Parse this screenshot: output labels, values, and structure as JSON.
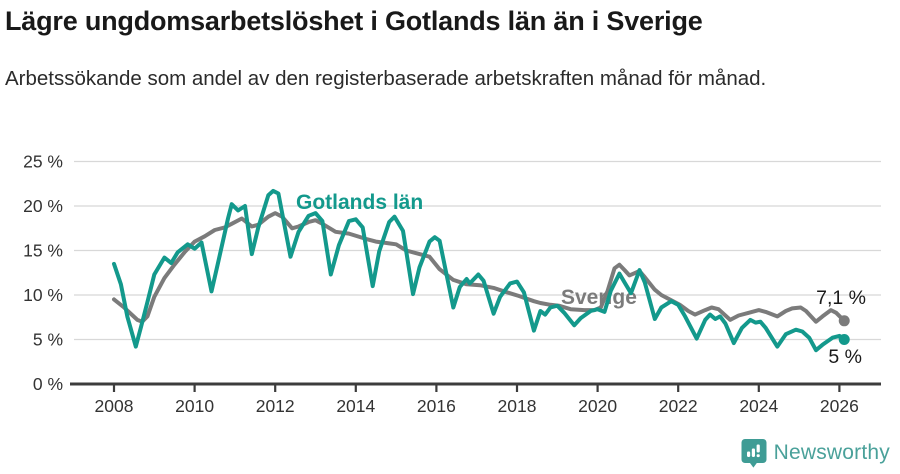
{
  "header": {
    "title": "Lägre ungdomsarbetslöshet i Gotlands län än i Sverige",
    "subtitle": "Arbetssökande som andel av den registerbaserade arbetskraften månad för månad."
  },
  "chart_data": {
    "type": "line",
    "title": "Lägre ungdomsarbetslöshet i Gotlands län än i Sverige",
    "subtitle": "Arbetssökande som andel av den registerbaserade arbetskraften månad för månad.",
    "unit": "%",
    "grid": true,
    "legend": "inline-labels",
    "x_axis": {
      "ticks": [
        2008,
        2010,
        2012,
        2014,
        2016,
        2018,
        2020,
        2022,
        2024,
        2026
      ],
      "range": [
        2007.85,
        2026.6
      ]
    },
    "y_axis": {
      "ticks": [
        0,
        5,
        10,
        15,
        20,
        25
      ],
      "tick_labels": [
        "0 %",
        "5 %",
        "10 %",
        "15 %",
        "20 %",
        "25 %"
      ],
      "range": [
        0,
        25.3
      ]
    },
    "series": [
      {
        "name": "Sverige",
        "color": "#7B7B7B",
        "end_value": 7.1,
        "end_label": "7,1 %",
        "points": [
          [
            2008.0,
            9.5
          ],
          [
            2008.25,
            8.6
          ],
          [
            2008.58,
            7.2
          ],
          [
            2008.7,
            7.0
          ],
          [
            2008.83,
            7.6
          ],
          [
            2009.0,
            9.8
          ],
          [
            2009.25,
            11.9
          ],
          [
            2009.5,
            13.4
          ],
          [
            2009.75,
            14.8
          ],
          [
            2010.0,
            16.0
          ],
          [
            2010.25,
            16.6
          ],
          [
            2010.5,
            17.3
          ],
          [
            2010.75,
            17.6
          ],
          [
            2010.92,
            18.0
          ],
          [
            2011.17,
            18.6
          ],
          [
            2011.42,
            17.7
          ],
          [
            2011.58,
            17.9
          ],
          [
            2011.83,
            18.8
          ],
          [
            2012.0,
            19.2
          ],
          [
            2012.17,
            18.8
          ],
          [
            2012.42,
            17.5
          ],
          [
            2012.58,
            17.7
          ],
          [
            2012.83,
            18.2
          ],
          [
            2013.0,
            18.4
          ],
          [
            2013.17,
            18.0
          ],
          [
            2013.5,
            17.1
          ],
          [
            2013.83,
            16.9
          ],
          [
            2014.25,
            16.3
          ],
          [
            2014.5,
            16.0
          ],
          [
            2014.83,
            15.8
          ],
          [
            2015.0,
            15.7
          ],
          [
            2015.25,
            15.0
          ],
          [
            2015.58,
            14.6
          ],
          [
            2015.83,
            14.3
          ],
          [
            2016.08,
            12.9
          ],
          [
            2016.42,
            11.7
          ],
          [
            2016.75,
            11.2
          ],
          [
            2017.08,
            11.1
          ],
          [
            2017.42,
            10.8
          ],
          [
            2017.75,
            10.3
          ],
          [
            2018.04,
            9.9
          ],
          [
            2018.42,
            9.3
          ],
          [
            2018.58,
            9.1
          ],
          [
            2018.83,
            8.9
          ],
          [
            2019.04,
            8.8
          ],
          [
            2019.33,
            8.4
          ],
          [
            2019.67,
            8.3
          ],
          [
            2019.92,
            8.3
          ],
          [
            2020.08,
            8.6
          ],
          [
            2020.25,
            10.5
          ],
          [
            2020.42,
            13.0
          ],
          [
            2020.54,
            13.4
          ],
          [
            2020.67,
            12.8
          ],
          [
            2020.79,
            12.2
          ],
          [
            2021.04,
            12.7
          ],
          [
            2021.17,
            12.0
          ],
          [
            2021.42,
            10.6
          ],
          [
            2021.58,
            10.0
          ],
          [
            2021.83,
            9.4
          ],
          [
            2022.04,
            8.9
          ],
          [
            2022.25,
            8.2
          ],
          [
            2022.42,
            7.8
          ],
          [
            2022.67,
            8.3
          ],
          [
            2022.83,
            8.6
          ],
          [
            2023.0,
            8.4
          ],
          [
            2023.29,
            7.2
          ],
          [
            2023.5,
            7.7
          ],
          [
            2023.75,
            8.0
          ],
          [
            2024.0,
            8.3
          ],
          [
            2024.17,
            8.1
          ],
          [
            2024.46,
            7.6
          ],
          [
            2024.67,
            8.2
          ],
          [
            2024.83,
            8.5
          ],
          [
            2025.04,
            8.6
          ],
          [
            2025.17,
            8.2
          ],
          [
            2025.42,
            7.0
          ],
          [
            2025.58,
            7.6
          ],
          [
            2025.79,
            8.3
          ],
          [
            2025.92,
            8.0
          ],
          [
            2026.12,
            7.1
          ]
        ]
      },
      {
        "name": "Gotlands län",
        "color": "#13998C",
        "end_value": 5.0,
        "end_label": "5 %",
        "points": [
          [
            2008.0,
            13.5
          ],
          [
            2008.17,
            11.2
          ],
          [
            2008.33,
            7.6
          ],
          [
            2008.54,
            4.2
          ],
          [
            2008.67,
            6.4
          ],
          [
            2008.83,
            9.2
          ],
          [
            2009.0,
            12.3
          ],
          [
            2009.25,
            14.2
          ],
          [
            2009.42,
            13.6
          ],
          [
            2009.58,
            14.8
          ],
          [
            2009.83,
            15.7
          ],
          [
            2010.0,
            15.2
          ],
          [
            2010.17,
            15.9
          ],
          [
            2010.42,
            10.4
          ],
          [
            2010.58,
            13.6
          ],
          [
            2010.83,
            18.6
          ],
          [
            2010.92,
            20.2
          ],
          [
            2011.08,
            19.5
          ],
          [
            2011.25,
            20.0
          ],
          [
            2011.42,
            14.6
          ],
          [
            2011.58,
            17.6
          ],
          [
            2011.83,
            21.2
          ],
          [
            2011.95,
            21.7
          ],
          [
            2012.08,
            21.4
          ],
          [
            2012.38,
            14.3
          ],
          [
            2012.58,
            17.1
          ],
          [
            2012.83,
            18.9
          ],
          [
            2013.0,
            19.2
          ],
          [
            2013.17,
            18.3
          ],
          [
            2013.38,
            12.3
          ],
          [
            2013.58,
            15.6
          ],
          [
            2013.83,
            18.3
          ],
          [
            2014.0,
            18.5
          ],
          [
            2014.17,
            17.6
          ],
          [
            2014.42,
            11.0
          ],
          [
            2014.58,
            14.9
          ],
          [
            2014.83,
            18.2
          ],
          [
            2014.96,
            18.8
          ],
          [
            2015.17,
            17.2
          ],
          [
            2015.42,
            10.1
          ],
          [
            2015.58,
            13.1
          ],
          [
            2015.83,
            16.0
          ],
          [
            2015.96,
            16.5
          ],
          [
            2016.08,
            16.1
          ],
          [
            2016.42,
            8.6
          ],
          [
            2016.58,
            10.9
          ],
          [
            2016.75,
            11.8
          ],
          [
            2016.83,
            11.3
          ],
          [
            2017.04,
            12.3
          ],
          [
            2017.17,
            11.6
          ],
          [
            2017.42,
            7.9
          ],
          [
            2017.58,
            9.8
          ],
          [
            2017.83,
            11.3
          ],
          [
            2018.0,
            11.5
          ],
          [
            2018.17,
            10.3
          ],
          [
            2018.42,
            6.0
          ],
          [
            2018.58,
            8.2
          ],
          [
            2018.7,
            7.8
          ],
          [
            2018.83,
            8.6
          ],
          [
            2019.0,
            8.8
          ],
          [
            2019.17,
            8.0
          ],
          [
            2019.42,
            6.6
          ],
          [
            2019.58,
            7.4
          ],
          [
            2019.83,
            8.2
          ],
          [
            2020.0,
            8.4
          ],
          [
            2020.17,
            8.1
          ],
          [
            2020.33,
            10.5
          ],
          [
            2020.54,
            12.4
          ],
          [
            2020.67,
            11.4
          ],
          [
            2020.83,
            10.2
          ],
          [
            2021.04,
            12.8
          ],
          [
            2021.17,
            11.4
          ],
          [
            2021.42,
            7.3
          ],
          [
            2021.58,
            8.6
          ],
          [
            2021.83,
            9.3
          ],
          [
            2022.0,
            8.9
          ],
          [
            2022.17,
            7.6
          ],
          [
            2022.46,
            5.1
          ],
          [
            2022.67,
            7.2
          ],
          [
            2022.79,
            7.8
          ],
          [
            2022.92,
            7.3
          ],
          [
            2023.04,
            7.6
          ],
          [
            2023.17,
            6.8
          ],
          [
            2023.38,
            4.6
          ],
          [
            2023.58,
            6.3
          ],
          [
            2023.79,
            7.2
          ],
          [
            2023.92,
            6.9
          ],
          [
            2024.04,
            7.0
          ],
          [
            2024.17,
            6.3
          ],
          [
            2024.46,
            4.2
          ],
          [
            2024.67,
            5.6
          ],
          [
            2024.92,
            6.1
          ],
          [
            2025.08,
            5.9
          ],
          [
            2025.25,
            5.2
          ],
          [
            2025.42,
            3.8
          ],
          [
            2025.58,
            4.4
          ],
          [
            2025.83,
            5.2
          ],
          [
            2026.0,
            5.4
          ],
          [
            2026.12,
            5.0
          ]
        ]
      }
    ]
  },
  "colors": {
    "accent_teal": "#13998C",
    "series_gray": "#7B7B7B",
    "grid": "#D8D8D8",
    "axis": "#3C3C3C",
    "tick_text": "#333333",
    "value_label": "#1a1a1a",
    "brand": "#4AA19A"
  },
  "footer": {
    "brand": "Newsworthy"
  }
}
